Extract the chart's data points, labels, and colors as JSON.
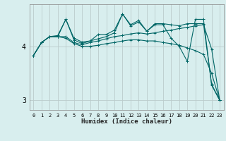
{
  "xlabel": "Humidex (Indice chaleur)",
  "bg_color": "#d8eeee",
  "grid_color": "#bbcccc",
  "line_color": "#006666",
  "xlim": [
    -0.5,
    23.5
  ],
  "ylim": [
    2.82,
    4.78
  ],
  "yticks": [
    3,
    4
  ],
  "xticks": [
    0,
    1,
    2,
    3,
    4,
    5,
    6,
    7,
    8,
    9,
    10,
    11,
    12,
    13,
    14,
    15,
    16,
    17,
    18,
    19,
    20,
    21,
    22,
    23
  ],
  "series": [
    {
      "x": [
        0,
        1,
        2,
        3,
        4,
        5,
        6,
        7,
        8,
        9,
        10,
        11,
        12,
        13,
        14,
        15,
        16,
        17,
        18,
        19,
        20,
        21,
        22,
        23
      ],
      "y": [
        3.83,
        4.07,
        4.18,
        4.18,
        4.5,
        4.15,
        4.08,
        4.1,
        4.22,
        4.22,
        4.3,
        4.6,
        4.4,
        4.48,
        4.28,
        4.42,
        4.42,
        4.4,
        4.38,
        4.42,
        4.42,
        4.42,
        3.3,
        3.0
      ]
    },
    {
      "x": [
        0,
        1,
        2,
        3,
        4,
        5,
        6,
        7,
        8,
        9,
        10,
        11,
        12,
        13,
        14,
        15,
        16,
        17,
        18,
        19,
        20,
        21,
        22,
        23
      ],
      "y": [
        3.83,
        4.07,
        4.18,
        4.2,
        4.5,
        4.12,
        4.05,
        4.1,
        4.14,
        4.18,
        4.25,
        4.6,
        4.38,
        4.45,
        4.28,
        4.4,
        4.4,
        4.15,
        4.0,
        3.72,
        4.5,
        4.5,
        3.28,
        3.0
      ]
    },
    {
      "x": [
        0,
        1,
        2,
        3,
        4,
        5,
        6,
        7,
        8,
        9,
        10,
        11,
        12,
        13,
        14,
        15,
        16,
        17,
        18,
        19,
        20,
        21,
        22,
        23
      ],
      "y": [
        3.83,
        4.07,
        4.18,
        4.18,
        4.18,
        4.07,
        4.03,
        4.07,
        4.1,
        4.14,
        4.18,
        4.2,
        4.23,
        4.25,
        4.23,
        4.25,
        4.28,
        4.3,
        4.33,
        4.35,
        4.38,
        4.4,
        3.95,
        3.0
      ]
    },
    {
      "x": [
        0,
        1,
        2,
        3,
        4,
        5,
        6,
        7,
        8,
        9,
        10,
        11,
        12,
        13,
        14,
        15,
        16,
        17,
        18,
        19,
        20,
        21,
        22,
        23
      ],
      "y": [
        3.83,
        4.07,
        4.18,
        4.18,
        4.15,
        4.05,
        4.0,
        4.0,
        4.02,
        4.05,
        4.07,
        4.1,
        4.12,
        4.12,
        4.1,
        4.1,
        4.07,
        4.05,
        4.02,
        3.97,
        3.92,
        3.85,
        3.5,
        3.0
      ]
    }
  ]
}
